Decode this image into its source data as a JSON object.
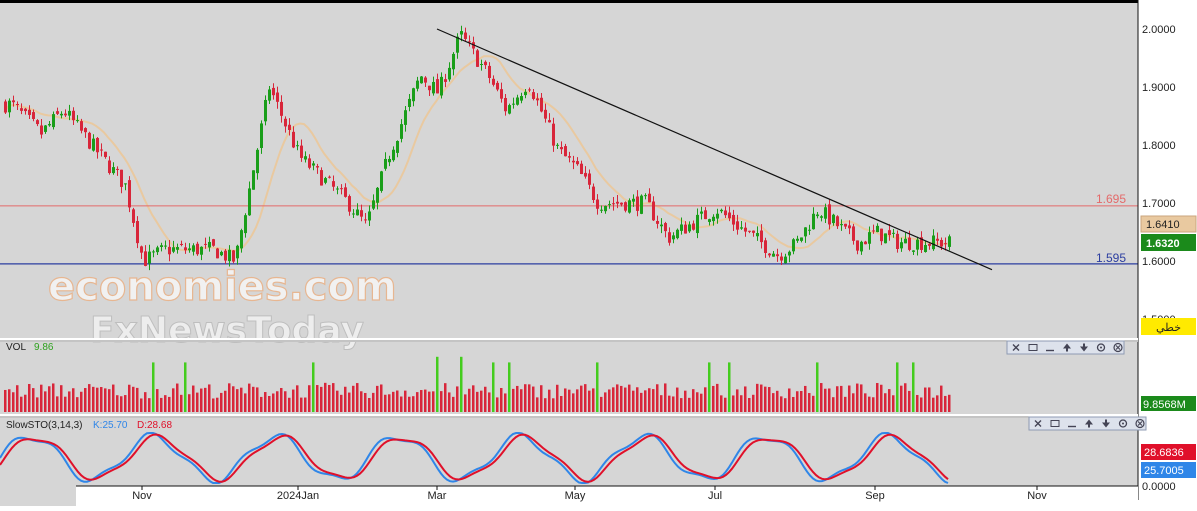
{
  "colors": {
    "background": "#d6d6d6",
    "bull": "#1a9e1a",
    "bear": "#d8263a",
    "ma": "#e9c9a0",
    "trendline": "#111111",
    "resistance": "#e46a6a",
    "support": "#2c3ea0",
    "sto_k": "#2f86e8",
    "sto_d": "#e0102a",
    "volume_bar": "#d8263a",
    "volume_up": "#44cc1e"
  },
  "watermark": {
    "line1": "economies.com",
    "line2": "FxNewsToday"
  },
  "price_axis": {
    "ticks": [
      "2.0000",
      "1.9000",
      "1.8000",
      "1.7000",
      "1.6000",
      "1.5000"
    ],
    "tag_ma": "1.6410",
    "tag_last": "1.6320",
    "tag_tool": "خطي"
  },
  "levels": {
    "resistance_label": "1.695",
    "support_label": "1.595"
  },
  "volume_panel": {
    "title": "VOL",
    "value": "9.86",
    "axis_tag": "9.8568M"
  },
  "sto_panel": {
    "title": "SlowSTO(3,14,3)",
    "k_label": "K:25.70",
    "d_label": "D:28.68",
    "tag_d": "28.6836",
    "tag_k": "25.7005",
    "zero_label": "0.0000"
  },
  "time_axis": [
    "Nov",
    "2024Jan",
    "Mar",
    "May",
    "Jul",
    "Sep",
    "Nov"
  ],
  "toolbar_icons": [
    "close-icon",
    "window-icon",
    "minimize-icon",
    "up-arrow-icon",
    "down-arrow-icon",
    "settings-icon",
    "close-circle-icon"
  ],
  "chart_data": {
    "type": "candlestick",
    "y_range": [
      1.48,
      2.03
    ],
    "ma_label": "moving average",
    "support": 1.595,
    "resistance": 1.695,
    "trendline": {
      "from": [
        "2024-03 mid",
        2.0
      ],
      "to": [
        "2024-10 early",
        1.585
      ]
    },
    "close_anchors": [
      {
        "x": "2023-10 start",
        "y": 1.87
      },
      {
        "x": "2023-10 mid",
        "y": 1.82
      },
      {
        "x": "2023-10 late",
        "y": 1.86
      },
      {
        "x": "2023-11 early",
        "y": 1.73
      },
      {
        "x": "2023-11 mid",
        "y": 1.6
      },
      {
        "x": "2023-11 late",
        "y": 1.62
      },
      {
        "x": "2023-12 mid",
        "y": 1.62
      },
      {
        "x": "2023-12 late",
        "y": 1.6
      },
      {
        "x": "2024-01 start",
        "y": 1.9
      },
      {
        "x": "2024-01 mid",
        "y": 1.78
      },
      {
        "x": "2024-02 early",
        "y": 1.7
      },
      {
        "x": "2024-02 mid",
        "y": 1.66
      },
      {
        "x": "2024-02 late",
        "y": 1.78
      },
      {
        "x": "2024-03 early",
        "y": 1.92
      },
      {
        "x": "2024-03 mid",
        "y": 1.89
      },
      {
        "x": "2024-03 late",
        "y": 1.99
      },
      {
        "x": "2024-04 early",
        "y": 1.92
      },
      {
        "x": "2024-04 mid",
        "y": 1.86
      },
      {
        "x": "2024-04 late",
        "y": 1.91
      },
      {
        "x": "2024-05 early",
        "y": 1.79
      },
      {
        "x": "2024-05 mid",
        "y": 1.76
      },
      {
        "x": "2024-05 late",
        "y": 1.7
      },
      {
        "x": "2024-06 mid",
        "y": 1.7
      },
      {
        "x": "2024-06 late",
        "y": 1.64
      },
      {
        "x": "2024-07 mid",
        "y": 1.69
      },
      {
        "x": "2024-07 late",
        "y": 1.66
      },
      {
        "x": "2024-08 early",
        "y": 1.61
      },
      {
        "x": "2024-08 mid",
        "y": 1.63
      },
      {
        "x": "2024-08 late",
        "y": 1.69
      },
      {
        "x": "2024-09 early",
        "y": 1.63
      },
      {
        "x": "2024-09 mid",
        "y": 1.65
      },
      {
        "x": "2024-09 late",
        "y": 1.632
      }
    ],
    "volume": {
      "typical": 9.8,
      "spikes": [
        {
          "x": "2024-03 mid",
          "value": 24
        },
        {
          "x": "2024-03 late",
          "value": 24
        }
      ]
    },
    "stochastic": {
      "k_last": 25.7,
      "d_last": 28.68
    }
  }
}
